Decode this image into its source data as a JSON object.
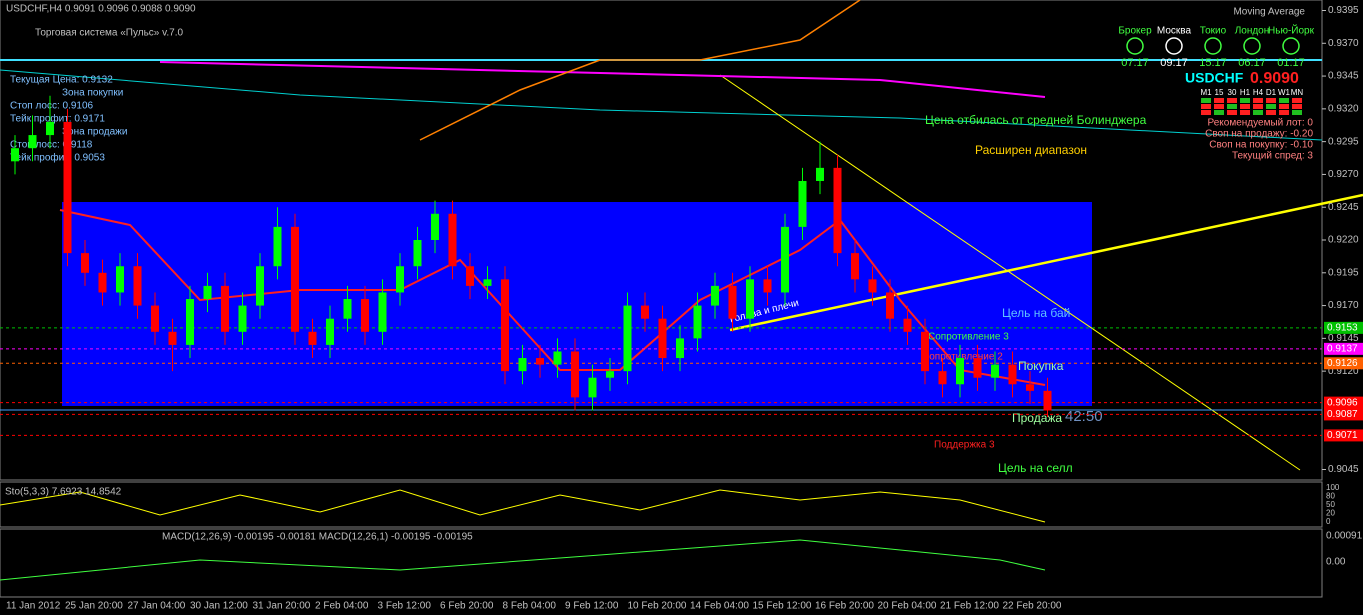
{
  "header": {
    "symbol_line": "USDCHF,H4  0.9091 0.9096 0.9088 0.9090",
    "indicator": "Moving Average"
  },
  "system": {
    "title": "Торговая система «Пульс» v.7.0",
    "lines": [
      "Текущая Цена: 0.9132",
      "Зона покупки",
      "Стоп лосс: 0.9106",
      "Тейк профит: 0.9171",
      "Зона продажи",
      "Стоп лосс: 0.9118",
      "Тейк профит: 0.9053"
    ]
  },
  "clocks": {
    "names": [
      "Брокер",
      "Москва",
      "Токио",
      "Лондон",
      "Нью-Йорк"
    ],
    "times": [
      "07:17",
      "09:17",
      "15:17",
      "06:17",
      "01:17"
    ]
  },
  "ticker": {
    "symbol": "USDCHF",
    "price": "0.9090",
    "timeframes": [
      "M1",
      "15",
      "30",
      "H1",
      "H4",
      "D1",
      "W1",
      "MN"
    ],
    "info": [
      "Рекомендуемый лот: 0",
      "Своп на продажу: -0.20",
      "Своп на покупку: -0.10",
      "Текущий спред: 3"
    ]
  },
  "annotations": {
    "bollinger": "Цена отбилась от средней Болинджера",
    "range": "Расширен диапазон",
    "target_buy": "Цель на бай",
    "resistance3": "Сопротивление 3",
    "resistance2": "Сопротивление 2",
    "buy": "Покупка",
    "sell": "Продажа",
    "timer": "42:50",
    "support3": "Поддержка 3",
    "target_sell": "Цель на селл",
    "pattern": "Голова и плечи"
  },
  "indicators": {
    "stoch": "Sto(5,3,3) 7.6923 14.8542",
    "stoch_scale": [
      "100",
      "80",
      "50",
      "20",
      "0"
    ],
    "macd": "MACD(12,26,9) -0.00195 -0.00181  MACD(12,26,1) -0.00195 -0.00195",
    "macd_scale": [
      "0.00091",
      "0.00"
    ]
  },
  "time_axis": [
    "11 Jan 2012",
    "25 Jan 20:00",
    "27 Jan 04:00",
    "30 Jan 12:00",
    "31 Jan 20:00",
    "2 Feb 04:00",
    "3 Feb 12:00",
    "6 Feb 20:00",
    "8 Feb 04:00",
    "9 Feb 12:00",
    "10 Feb 20:00",
    "14 Feb 04:00",
    "15 Feb 12:00",
    "16 Feb 20:00",
    "20 Feb 04:00",
    "21 Feb 12:00",
    "22 Feb 20:00"
  ],
  "chart_data": {
    "type": "candlestick",
    "up_color": "#00ff00",
    "down_color": "#ff0000",
    "ylim": [
      0.9037,
      0.9403
    ],
    "yticks": [
      0.9395,
      {
        "value": 0.937,
        "label": "0.9370"
      },
      0.9345,
      {
        "value": 0.932,
        "label": "0.9320"
      },
      0.9295,
      {
        "value": 0.927,
        "label": "0.9270"
      },
      0.9245,
      {
        "value": 0.922,
        "label": "0.9220"
      },
      0.9195,
      {
        "value": 0.917,
        "label": "0.9170"
      },
      0.9145,
      {
        "value": 0.912,
        "label": "0.9120"
      },
      0.9045
    ],
    "open": [
      0.928,
      0.929,
      0.93,
      0.931,
      0.921,
      0.9195,
      0.918,
      0.92,
      0.917,
      0.915,
      0.914,
      0.9175,
      0.9185,
      0.915,
      0.917,
      0.92,
      0.923,
      0.915,
      0.914,
      0.916,
      0.9175,
      0.915,
      0.918,
      0.92,
      0.922,
      0.924,
      0.92,
      0.9185,
      0.919,
      0.912,
      0.913,
      0.9125,
      0.9135,
      0.91,
      0.9115,
      0.912,
      0.917,
      0.916,
      0.913,
      0.9145,
      0.917,
      0.9185,
      0.916,
      0.919,
      0.918,
      0.923,
      0.9265,
      0.9275,
      0.921,
      0.919,
      0.918,
      0.916,
      0.915,
      0.912,
      0.911,
      0.913,
      0.9115,
      0.9125,
      0.911,
      0.9105
    ],
    "high": [
      0.93,
      0.9315,
      0.933,
      0.932,
      0.922,
      0.9205,
      0.921,
      0.921,
      0.918,
      0.916,
      0.9185,
      0.9195,
      0.9195,
      0.918,
      0.921,
      0.9245,
      0.924,
      0.916,
      0.917,
      0.9185,
      0.9185,
      0.919,
      0.921,
      0.923,
      0.925,
      0.925,
      0.921,
      0.92,
      0.92,
      0.914,
      0.914,
      0.9145,
      0.9145,
      0.9125,
      0.913,
      0.918,
      0.918,
      0.917,
      0.9155,
      0.918,
      0.9195,
      0.9195,
      0.92,
      0.92,
      0.924,
      0.9275,
      0.9295,
      0.9285,
      0.922,
      0.92,
      0.919,
      0.917,
      0.916,
      0.913,
      0.914,
      0.914,
      0.9135,
      0.9135,
      0.912,
      0.9115
    ],
    "low": [
      0.927,
      0.928,
      0.929,
      0.92,
      0.9185,
      0.917,
      0.917,
      0.916,
      0.914,
      0.912,
      0.913,
      0.9165,
      0.914,
      0.914,
      0.916,
      0.919,
      0.914,
      0.913,
      0.913,
      0.915,
      0.914,
      0.914,
      0.917,
      0.919,
      0.921,
      0.919,
      0.9175,
      0.9175,
      0.911,
      0.911,
      0.9115,
      0.9115,
      0.909,
      0.909,
      0.9105,
      0.911,
      0.915,
      0.912,
      0.912,
      0.9135,
      0.916,
      0.915,
      0.915,
      0.917,
      0.917,
      0.922,
      0.9255,
      0.92,
      0.918,
      0.917,
      0.915,
      0.914,
      0.911,
      0.91,
      0.91,
      0.9105,
      0.9105,
      0.91,
      0.9095,
      0.9085
    ],
    "close": [
      0.929,
      0.93,
      0.931,
      0.921,
      0.9195,
      0.918,
      0.92,
      0.917,
      0.915,
      0.914,
      0.9175,
      0.9185,
      0.915,
      0.917,
      0.92,
      0.923,
      0.915,
      0.914,
      0.916,
      0.9175,
      0.915,
      0.918,
      0.92,
      0.922,
      0.924,
      0.92,
      0.9185,
      0.919,
      0.912,
      0.913,
      0.9125,
      0.9135,
      0.91,
      0.9115,
      0.912,
      0.917,
      0.916,
      0.913,
      0.9145,
      0.917,
      0.9185,
      0.916,
      0.919,
      0.918,
      0.923,
      0.9265,
      0.9275,
      0.921,
      0.919,
      0.918,
      0.916,
      0.915,
      0.912,
      0.911,
      0.913,
      0.9115,
      0.9125,
      0.911,
      0.9105,
      0.909
    ],
    "price_labels": [
      {
        "value": 0.9153,
        "label": "0.9153",
        "color": "#00c000"
      },
      {
        "value": 0.9137,
        "label": "0.9137",
        "color": "#ff00ff"
      },
      {
        "value": 0.9126,
        "label": "0.9126",
        "color": "#ff6000"
      },
      {
        "value": 0.9096,
        "label": "0.9096",
        "color": "#ff0000"
      },
      {
        "value": 0.9087,
        "label": "0.9087",
        "color": "#ff0000"
      },
      {
        "value": 0.9071,
        "label": "0.9071",
        "color": "#ff0000"
      }
    ]
  }
}
